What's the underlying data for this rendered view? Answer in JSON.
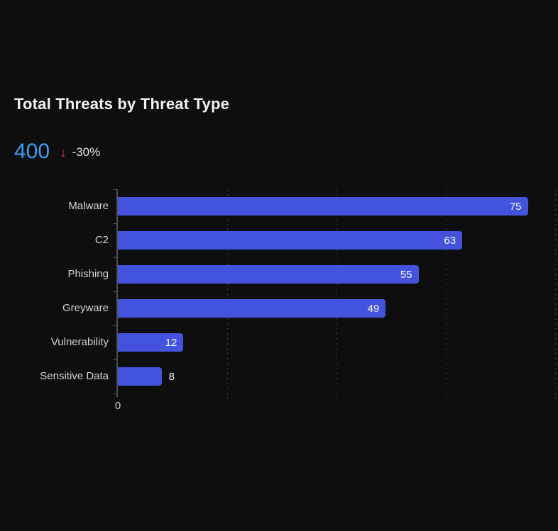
{
  "header": {
    "title": "Total Threats by Threat Type"
  },
  "kpi": {
    "value": "400",
    "arrow_glyph": "↓",
    "trend_direction": "down",
    "delta": "-30%",
    "value_color": "#3aa0f7",
    "arrow_color": "#d6336c"
  },
  "chart_data": {
    "type": "bar",
    "orientation": "horizontal",
    "title": "Total Threats by Threat Type",
    "categories": [
      "Malware",
      "C2",
      "Phishing",
      "Greyware",
      "Vulnerability",
      "Sensitive Data"
    ],
    "values": [
      75,
      63,
      55,
      49,
      12,
      8
    ],
    "xlabel": "",
    "ylabel": "",
    "xlim": [
      0,
      80
    ],
    "x_tick_labels": [
      "0"
    ],
    "gridline_values": [
      20,
      40,
      60,
      80
    ],
    "grid": "vertical-dotted",
    "legend": "none",
    "bar_color": "#4353dd",
    "background": "#0e0e0f"
  }
}
